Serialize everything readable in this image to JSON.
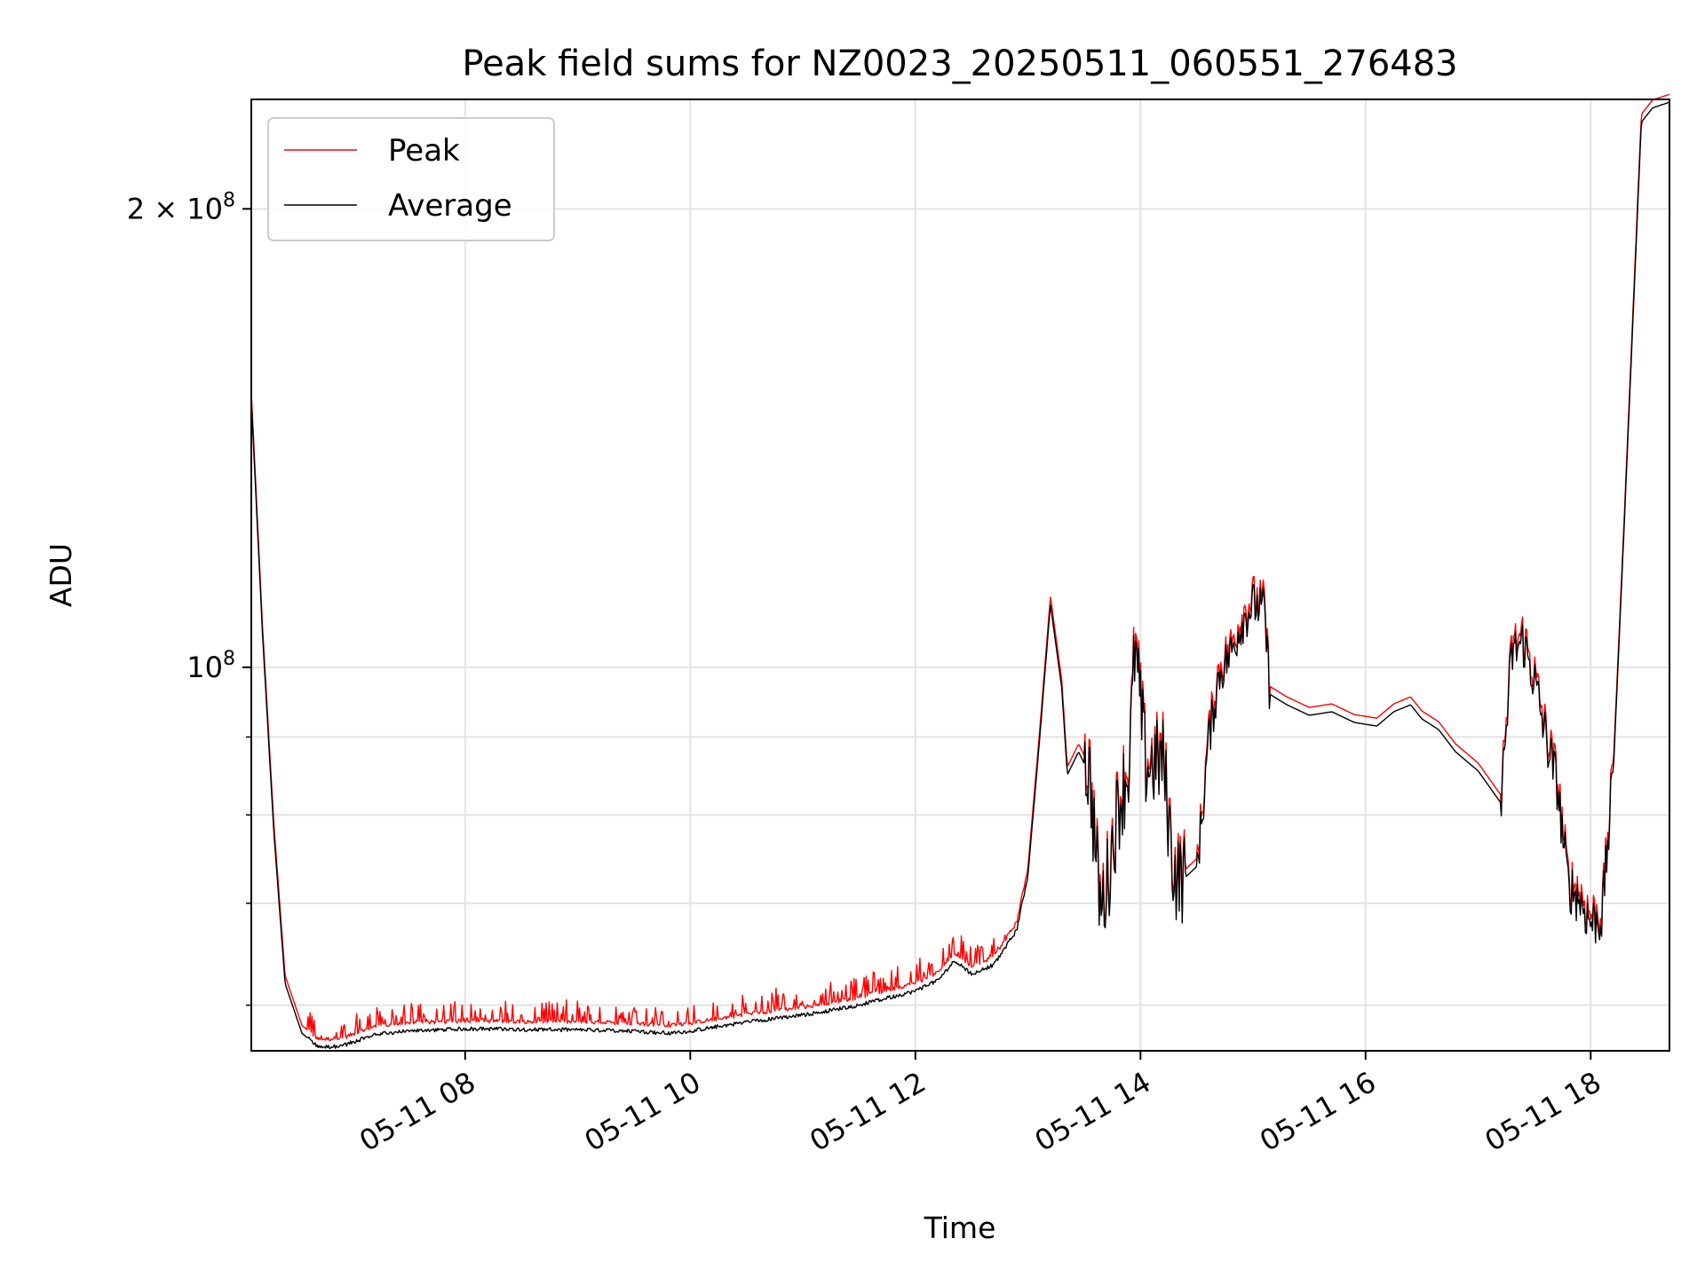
{
  "chart_data": {
    "type": "line",
    "title": "Peak field sums for NZ0023_20250511_060551_276483",
    "xlabel": "Time",
    "ylabel": "ADU",
    "yscale": "log",
    "grid": true,
    "legend_placement": "upper left",
    "x_unit": "hours of 2025-05-11 (local day)",
    "xlim": [
      6.1,
      18.7
    ],
    "ylim": [
      56000000,
      236000000
    ],
    "x_tick_labels": [
      "05-11 08",
      "05-11 10",
      "05-11 12",
      "05-11 14",
      "05-11 16",
      "05-11 18"
    ],
    "x_tick_values": [
      8,
      10,
      12,
      14,
      16,
      18
    ],
    "y_tick_labels": [
      {
        "base": "10",
        "exp": "8",
        "prefix": "",
        "value": 100000000
      },
      {
        "base": "10",
        "exp": "8",
        "prefix": "2 × ",
        "value": 200000000
      }
    ],
    "y_minor_ticks": [
      60000000,
      70000000,
      80000000,
      90000000
    ],
    "series": [
      {
        "name": "Peak",
        "color": "#ff0000"
      },
      {
        "name": "Average",
        "color": "#000000"
      }
    ],
    "average_series_points": [
      [
        6.1,
        150000000
      ],
      [
        6.2,
        105000000
      ],
      [
        6.3,
        78000000
      ],
      [
        6.4,
        62000000
      ],
      [
        6.55,
        57500000
      ],
      [
        6.7,
        56300000
      ],
      [
        6.9,
        56400000
      ],
      [
        7.2,
        57400000
      ],
      [
        7.5,
        57700000
      ],
      [
        8.0,
        57900000
      ],
      [
        9.0,
        57800000
      ],
      [
        9.5,
        57700000
      ],
      [
        9.8,
        57500000
      ],
      [
        10.0,
        57700000
      ],
      [
        10.5,
        58500000
      ],
      [
        11.0,
        59100000
      ],
      [
        11.5,
        60000000
      ],
      [
        12.0,
        61300000
      ],
      [
        12.2,
        62300000
      ],
      [
        12.35,
        64200000
      ],
      [
        12.5,
        62900000
      ],
      [
        12.7,
        63800000
      ],
      [
        12.9,
        67200000
      ],
      [
        13.0,
        73000000
      ],
      [
        13.1,
        89000000
      ],
      [
        13.2,
        110000000
      ],
      [
        13.3,
        97000000
      ],
      [
        13.35,
        85000000
      ],
      [
        13.45,
        88000000
      ],
      [
        13.55,
        85000000
      ],
      [
        13.6,
        76000000
      ],
      [
        13.65,
        69000000
      ],
      [
        13.72,
        73500000
      ],
      [
        13.8,
        81000000
      ],
      [
        13.9,
        86000000
      ],
      [
        13.95,
        103000000
      ],
      [
        14.05,
        86000000
      ],
      [
        14.2,
        87000000
      ],
      [
        14.3,
        73000000
      ],
      [
        14.4,
        72800000
      ],
      [
        14.5,
        74000000
      ],
      [
        14.55,
        80000000
      ],
      [
        14.6,
        89000000
      ],
      [
        14.7,
        99000000
      ],
      [
        14.8,
        102000000
      ],
      [
        14.9,
        107000000
      ],
      [
        15.0,
        110000000
      ],
      [
        15.1,
        109000000
      ],
      [
        15.15,
        96000000
      ],
      [
        15.3,
        94500000
      ],
      [
        15.5,
        93000000
      ],
      [
        15.7,
        93500000
      ],
      [
        15.9,
        92000000
      ],
      [
        16.1,
        91500000
      ],
      [
        16.25,
        93500000
      ],
      [
        16.4,
        94500000
      ],
      [
        16.5,
        92500000
      ],
      [
        16.65,
        91000000
      ],
      [
        16.8,
        88000000
      ],
      [
        17.0,
        85500000
      ],
      [
        17.2,
        81500000
      ],
      [
        17.3,
        102000000
      ],
      [
        17.4,
        104000000
      ],
      [
        17.5,
        98000000
      ],
      [
        17.6,
        90000000
      ],
      [
        17.7,
        84000000
      ],
      [
        17.8,
        72000000
      ],
      [
        17.9,
        70500000
      ],
      [
        18.0,
        68000000
      ],
      [
        18.1,
        68500000
      ],
      [
        18.2,
        85000000
      ],
      [
        18.3,
        125000000
      ],
      [
        18.45,
        228000000
      ],
      [
        18.55,
        233000000
      ],
      [
        18.7,
        235000000
      ]
    ]
  }
}
